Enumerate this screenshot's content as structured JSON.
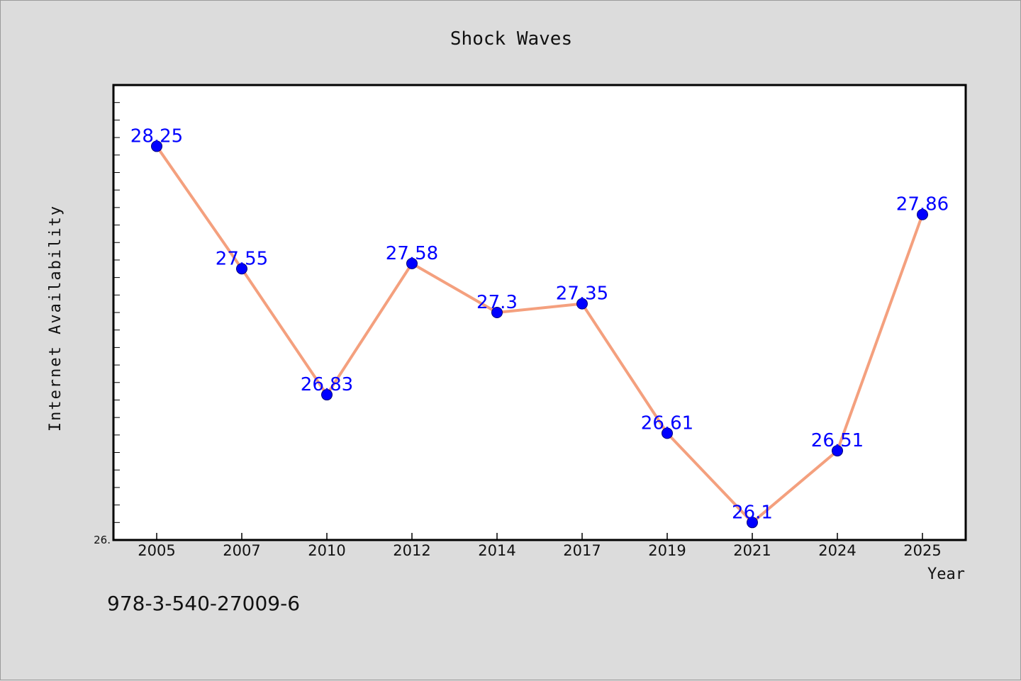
{
  "footer": {
    "id_text": "978-3-540-27009-6"
  },
  "chart_data": {
    "type": "line",
    "title": "Shock Waves",
    "xlabel": "Year",
    "ylabel": "Internet Availability",
    "categories": [
      "2005",
      "2007",
      "2010",
      "2012",
      "2014",
      "2017",
      "2019",
      "2021",
      "2024",
      "2025"
    ],
    "series": [
      {
        "values": [
          28.25,
          27.55,
          26.83,
          27.58,
          27.3,
          27.35,
          26.61,
          26.1,
          26.51,
          27.86
        ],
        "labels": [
          "28.25",
          "27.55",
          "26.83",
          "27.58",
          "27.3",
          "27.35",
          "26.61",
          "26.1",
          "26.51",
          "27.86"
        ]
      }
    ],
    "ylim": [
      26.0,
      28.6
    ],
    "y_tick_labels": [
      {
        "value": 26.0,
        "label": "26."
      }
    ],
    "grid": false,
    "colors": {
      "line": "#f4a07e",
      "marker": "#0000ff",
      "label": "#0000ff",
      "background": "#dcdcdc",
      "plot_background": "#ffffff"
    }
  }
}
